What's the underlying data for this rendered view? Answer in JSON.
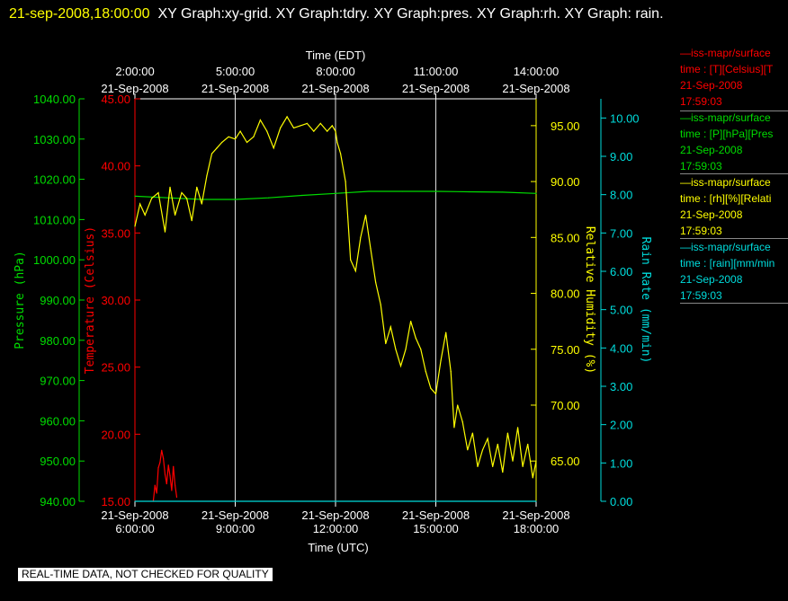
{
  "header": {
    "timestamp": "21-sep-2008,18:00:00",
    "graphs": "XY Graph:xy-grid.  XY Graph:tdry.  XY Graph:pres.  XY Graph:rh.  XY Graph: rain."
  },
  "notice": "REAL-TIME DATA, NOT CHECKED FOR QUALITY",
  "legend": [
    {
      "line1": "—iss-mapr/surface",
      "line2": "time : [T][Celsius][T",
      "line3": "21-Sep-2008",
      "line4": "17:59:03",
      "color": "#ff0000"
    },
    {
      "line1": "—iss-mapr/surface",
      "line2": "time : [P][hPa][Pres",
      "line3": "21-Sep-2008",
      "line4": "17:59:03",
      "color": "#00dd00"
    },
    {
      "line1": "—iss-mapr/surface",
      "line2": "time : [rh][%][Relati",
      "line3": "21-Sep-2008",
      "line4": "17:59:03",
      "color": "#ffff00"
    },
    {
      "line1": "—iss-mapr/surface",
      "line2": "time : [rain][mm/min",
      "line3": "21-Sep-2008",
      "line4": "17:59:03",
      "color": "#00dddd"
    }
  ],
  "chart_data": {
    "type": "line",
    "xlabel_top": "Time (EDT)",
    "xlabel_bottom": "Time (UTC)",
    "xlim_utc_hours": [
      6,
      18
    ],
    "top_ticks": [
      {
        "time": "2:00:00",
        "date": "21-Sep-2008"
      },
      {
        "time": "5:00:00",
        "date": "21-Sep-2008"
      },
      {
        "time": "8:00:00",
        "date": "21-Sep-2008"
      },
      {
        "time": "11:00:00",
        "date": "21-Sep-2008"
      },
      {
        "time": "14:00:00",
        "date": "21-Sep-2008"
      }
    ],
    "bottom_ticks": [
      {
        "time": "6:00:00",
        "date": "21-Sep-2008"
      },
      {
        "time": "9:00:00",
        "date": "21-Sep-2008"
      },
      {
        "time": "12:00:00",
        "date": "21-Sep-2008"
      },
      {
        "time": "15:00:00",
        "date": "21-Sep-2008"
      },
      {
        "time": "18:00:00",
        "date": "21-Sep-2008"
      }
    ],
    "grid": "vertical lines at 3-hour ticks",
    "axes": {
      "pressure": {
        "label": "Pressure (hPa)",
        "color": "#00dd00",
        "ylim": [
          940,
          1040
        ],
        "ticks": [
          "940.00",
          "950.00",
          "960.00",
          "970.00",
          "980.00",
          "990.00",
          "1000.00",
          "1010.00",
          "1020.00",
          "1030.00",
          "1040.00"
        ]
      },
      "temperature": {
        "label": "Temperature (Celsius)",
        "color": "#ff0000",
        "ylim": [
          15,
          45
        ],
        "ticks": [
          "15.00",
          "20.00",
          "25.00",
          "30.00",
          "35.00",
          "40.00",
          "45.00"
        ]
      },
      "rh": {
        "label": "Relative Humidity (%)",
        "color": "#ffff00",
        "ylim": [
          61.4,
          97.4
        ],
        "ticks": [
          "65.00",
          "70.00",
          "75.00",
          "80.00",
          "85.00",
          "90.00",
          "95.00"
        ]
      },
      "rain": {
        "label": "Rain Rate (mm/min)",
        "color": "#00dddd",
        "ylim": [
          0,
          10.5
        ],
        "ticks": [
          "0.00",
          "1.00",
          "2.00",
          "3.00",
          "4.00",
          "5.00",
          "6.00",
          "7.00",
          "8.00",
          "9.00",
          "10.00"
        ]
      }
    },
    "series": [
      {
        "name": "iss-mapr/surface T [Celsius]",
        "axis": "temperature",
        "color": "#ff0000",
        "x": [
          6.55,
          6.6,
          6.65,
          6.7,
          6.75,
          6.8,
          6.85,
          6.9,
          6.95,
          7.0,
          7.05,
          7.1,
          7.15,
          7.2,
          7.25
        ],
        "y": [
          15.0,
          16.2,
          15.6,
          17.5,
          17.9,
          18.8,
          18.2,
          17.0,
          16.3,
          17.7,
          16.9,
          15.8,
          17.6,
          16.2,
          15.3
        ]
      },
      {
        "name": "iss-mapr/surface P [hPa]",
        "axis": "pressure",
        "color": "#00dd00",
        "x": [
          6.0,
          7.0,
          8.0,
          9.0,
          10.0,
          11.0,
          12.0,
          13.0,
          14.0,
          15.0,
          16.0,
          17.0,
          18.0
        ],
        "y": [
          1015.8,
          1015.4,
          1015.0,
          1015.0,
          1015.4,
          1016.0,
          1016.5,
          1017.0,
          1017.0,
          1017.0,
          1016.9,
          1016.8,
          1016.5
        ]
      },
      {
        "name": "iss-mapr/surface rh [%]",
        "axis": "rh",
        "color": "#ffff00",
        "x": [
          6.0,
          6.15,
          6.3,
          6.5,
          6.7,
          6.9,
          7.05,
          7.2,
          7.4,
          7.55,
          7.7,
          7.85,
          8.0,
          8.15,
          8.3,
          8.45,
          8.6,
          8.8,
          9.0,
          9.15,
          9.35,
          9.55,
          9.75,
          9.95,
          10.15,
          10.35,
          10.55,
          10.75,
          10.95,
          11.15,
          11.35,
          11.55,
          11.75,
          11.9,
          12.0,
          12.05,
          12.15,
          12.3,
          12.45,
          12.6,
          12.75,
          12.9,
          13.05,
          13.2,
          13.35,
          13.5,
          13.65,
          13.8,
          13.95,
          14.1,
          14.25,
          14.4,
          14.55,
          14.7,
          14.85,
          15.0,
          15.15,
          15.3,
          15.45,
          15.55,
          15.65,
          15.8,
          15.95,
          16.1,
          16.25,
          16.4,
          16.55,
          16.7,
          16.85,
          17.0,
          17.15,
          17.3,
          17.45,
          17.6,
          17.75,
          17.9,
          18.0
        ],
        "y": [
          86.0,
          88.0,
          87.0,
          88.5,
          89.0,
          85.5,
          89.5,
          87.0,
          89.0,
          88.5,
          86.5,
          89.5,
          88.0,
          90.5,
          92.5,
          93.0,
          93.5,
          94.0,
          93.8,
          94.5,
          93.5,
          94.0,
          95.5,
          94.5,
          93.0,
          94.8,
          95.8,
          94.8,
          95.0,
          95.2,
          94.5,
          95.2,
          94.5,
          95.0,
          94.5,
          93.5,
          92.5,
          90.0,
          83.0,
          82.0,
          85.0,
          87.0,
          84.0,
          81.0,
          79.0,
          75.5,
          77.0,
          75.0,
          73.5,
          75.0,
          77.5,
          76.0,
          75.0,
          73.0,
          71.5,
          71.0,
          74.0,
          76.5,
          73.0,
          68.0,
          70.0,
          68.5,
          66.0,
          67.5,
          64.5,
          66.0,
          67.0,
          64.5,
          66.5,
          64.0,
          67.5,
          65.0,
          68.0,
          64.5,
          66.5,
          63.5,
          65.0
        ]
      },
      {
        "name": "iss-mapr/surface rain [mm/min]",
        "axis": "rain",
        "color": "#00dddd",
        "x": [
          6.0,
          18.0
        ],
        "y": [
          0.0,
          0.0
        ]
      }
    ]
  }
}
